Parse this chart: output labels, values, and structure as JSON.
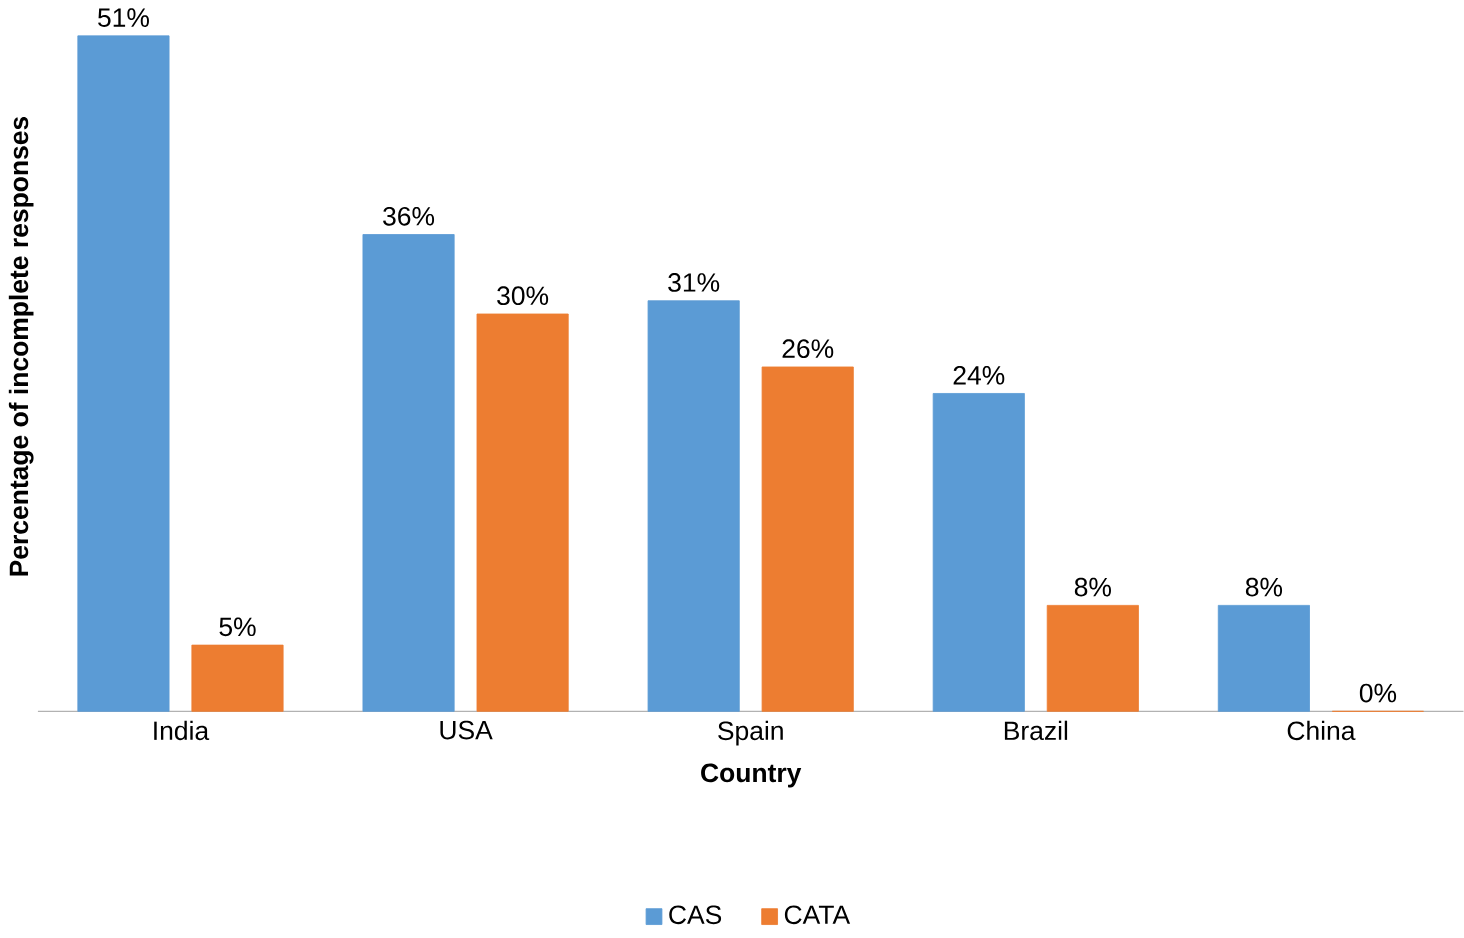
{
  "chart_data": {
    "type": "bar",
    "xlabel": "Country",
    "ylabel": "Percentage of incomplete responses",
    "categories": [
      "India",
      "USA",
      "Spain",
      "Brazil",
      "China"
    ],
    "series": [
      {
        "name": "CAS",
        "color": "#5b9bd5",
        "values": [
          51,
          36,
          31,
          24,
          8
        ],
        "value_labels": [
          "51%",
          "36%",
          "31%",
          "24%",
          "8%"
        ]
      },
      {
        "name": "CATA",
        "color": "#ed7d31",
        "values": [
          5,
          30,
          26,
          8,
          0
        ],
        "value_labels": [
          "5%",
          "30%",
          "26%",
          "8%",
          "0%"
        ]
      }
    ],
    "legend": "bottom",
    "grid": false
  }
}
